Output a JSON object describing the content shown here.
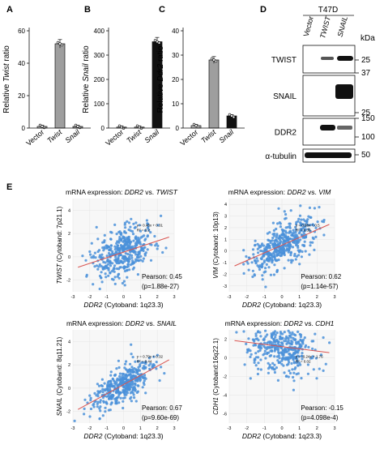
{
  "panels": {
    "A": {
      "letter": "A",
      "ylabel_pre": "Relative ",
      "ylabel_it": "Twist",
      "ylabel_post": " ratio",
      "ticks": [
        "0",
        "20",
        "40",
        "60"
      ],
      "cats": [
        "Vector",
        "Twist",
        "Snail"
      ],
      "values": [
        1,
        52,
        1
      ],
      "ymax": 60,
      "fills": [
        "#bdbdbd",
        "#9e9e9e",
        "#9e9e9e"
      ]
    },
    "B": {
      "letter": "B",
      "ylabel_pre": "Relative ",
      "ylabel_it": "Snail",
      "ylabel_post": " ratio",
      "ticks": [
        "0",
        "100",
        "200",
        "300",
        "400"
      ],
      "cats": [
        "Vector",
        "Twist",
        "Snail"
      ],
      "values": [
        1,
        1,
        355
      ],
      "ymax": 400,
      "fills": [
        "#bdbdbd",
        "#bdbdbd",
        "#111111"
      ]
    },
    "C": {
      "letter": "C",
      "ylabel_pre": "Relative ",
      "ylabel_it": "Ddr2",
      "ylabel_post": " ratio",
      "ticks": [
        "0",
        "10",
        "20",
        "30",
        "40"
      ],
      "cats": [
        "Vector",
        "Twist",
        "Snail"
      ],
      "values": [
        1,
        28,
        5
      ],
      "ymax": 40,
      "fills": [
        "#bdbdbd",
        "#9e9e9e",
        "#111111"
      ]
    },
    "D": {
      "letter": "D",
      "cell": "T47D",
      "kda": "kDa",
      "lanes": [
        "Vector",
        "TWIST",
        "SNAIL"
      ],
      "rows": [
        "TWIST",
        "SNAIL",
        "DDR2",
        "α-tubulin"
      ],
      "markers": [
        "25",
        "37",
        "25",
        "150",
        "100",
        "50"
      ]
    },
    "E": {
      "letter": "E",
      "plots": [
        {
          "t_pre": "mRNA expression: ",
          "t_a": "DDR2",
          "t_mid": " vs. ",
          "t_b": "TWIST",
          "y_it": "TWIST",
          "y_rest": " (Cytoband: 7p21.1)",
          "x_it": "DDR2",
          "x_rest": " (Cytoband: 1q23.3)",
          "pearson": "Pearson: 0.45",
          "p": "(p=1.88e-27)",
          "eq1": "y = 0.48x + 0.31",
          "eq2": "R² = 0.2",
          "yticks": [
            "-2",
            "0",
            "2",
            "4"
          ],
          "xticks": [
            "-3",
            "-2",
            "-1",
            "0",
            "1",
            "2",
            "3"
          ]
        },
        {
          "t_pre": "mRNA expression: ",
          "t_a": "DDR2",
          "t_mid": " vs. ",
          "t_b": "VIM",
          "y_it": "VIM",
          "y_rest": " (Cytoband: 10p13)",
          "x_it": "DDR2",
          "x_rest": " (Cytoband: 1q23.3)",
          "pearson": "Pearson: 0.62",
          "p": "(p=1.14e-57)",
          "eq1": "y = 0.66x + 0.5",
          "eq2": "R² = 0.39",
          "yticks": [
            "-3",
            "-2",
            "-1",
            "0",
            "1",
            "2",
            "3",
            "4"
          ],
          "xticks": [
            "-3",
            "-2",
            "-1",
            "0",
            "1",
            "2",
            "3"
          ]
        },
        {
          "t_pre": "mRNA expression: ",
          "t_a": "DDR2",
          "t_mid": " vs. ",
          "t_b": "SNAIL",
          "y_it": "SNAIL",
          "y_rest": " (Cytoband: 8q11.21)",
          "x_it": "DDR2",
          "x_rest": " (Cytoband: 1q23.3)",
          "pearson": "Pearson: 0.67",
          "p": "(p=9.60e-69)",
          "eq1": "y = 0.79x + 0.32",
          "eq2": "R² = 0.44",
          "yticks": [
            "-2",
            "0",
            "2",
            "4"
          ],
          "xticks": [
            "-3",
            "-2",
            "-1",
            "0",
            "1",
            "2",
            "3"
          ]
        },
        {
          "t_pre": "mRNA expression: ",
          "t_a": "DDR2",
          "t_mid": " vs. ",
          "t_b": "CDH1",
          "y_it": "CDH1",
          "y_rest": " (Cytoband:16q22.1)",
          "x_it": "DDR2",
          "x_rest": " (Cytoband: 1q23.3)",
          "pearson": "Pearson: -0.15",
          "p": "(p=4.098e-4)",
          "eq1": "y = -0.24x + 1.76",
          "eq2": "R² = 0.02",
          "yticks": [
            "-6",
            "-4",
            "-2",
            "0",
            "2"
          ],
          "xticks": [
            "-3",
            "-2",
            "-1",
            "0",
            "1",
            "2",
            "3"
          ]
        }
      ]
    }
  },
  "chart_data": [
    {
      "type": "bar",
      "categories": [
        "Vector",
        "Twist",
        "Snail"
      ],
      "values": [
        1,
        52,
        1
      ],
      "ylabel": "Relative Twist ratio",
      "ylim": [
        0,
        60
      ]
    },
    {
      "type": "bar",
      "categories": [
        "Vector",
        "Twist",
        "Snail"
      ],
      "values": [
        1,
        1,
        355
      ],
      "ylabel": "Relative Snail ratio",
      "ylim": [
        0,
        400
      ]
    },
    {
      "type": "bar",
      "categories": [
        "Vector",
        "Twist",
        "Snail"
      ],
      "values": [
        1,
        28,
        5
      ],
      "ylabel": "Relative Ddr2 ratio",
      "ylim": [
        0,
        40
      ]
    },
    {
      "type": "scatter",
      "title": "mRNA expression: DDR2 vs. TWIST",
      "xlim": [
        -3,
        3
      ],
      "ylim": [
        -3,
        5
      ],
      "slope": 0.48,
      "intercept": 0.31,
      "rho": 0.45,
      "center": [
        0,
        0.4
      ],
      "spread": [
        0.9,
        1.1
      ]
    },
    {
      "type": "scatter",
      "title": "mRNA expression: DDR2 vs. VIM",
      "xlim": [
        -3,
        3
      ],
      "ylim": [
        -3.5,
        4.5
      ],
      "slope": 0.66,
      "intercept": 0.5,
      "rho": 0.62,
      "center": [
        0,
        0.5
      ],
      "spread": [
        0.9,
        1.1
      ]
    },
    {
      "type": "scatter",
      "title": "mRNA expression: DDR2 vs. SNAIL",
      "xlim": [
        -3,
        3
      ],
      "ylim": [
        -3,
        5
      ],
      "slope": 0.79,
      "intercept": 0.32,
      "rho": 0.67,
      "center": [
        0,
        0.3
      ],
      "spread": [
        0.9,
        1.1
      ]
    },
    {
      "type": "scatter",
      "title": "mRNA expression: DDR2 vs. CDH1",
      "xlim": [
        -3,
        3
      ],
      "ylim": [
        -7,
        3
      ],
      "slope": -0.24,
      "intercept": 1.76,
      "rho": -0.15,
      "center": [
        0,
        1.2
      ],
      "spread": [
        0.9,
        1.5
      ]
    }
  ]
}
